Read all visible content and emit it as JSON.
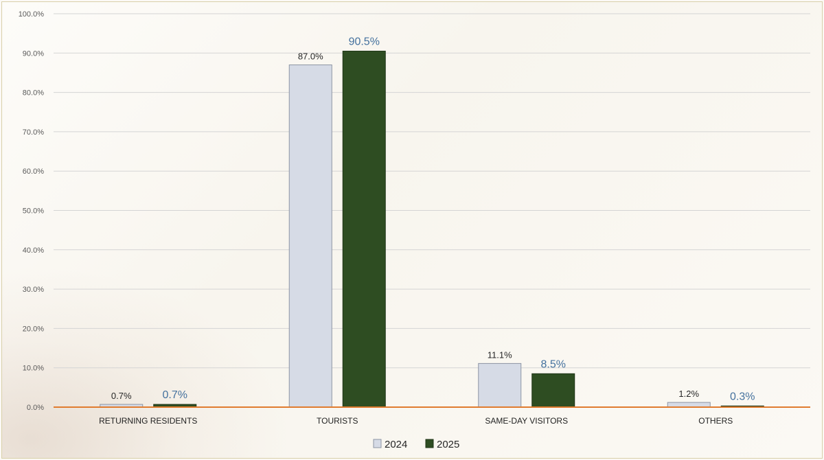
{
  "chart_data": {
    "type": "bar",
    "categories": [
      "RETURNING RESIDENTS",
      "TOURISTS",
      "SAME-DAY VISITORS",
      "OTHERS"
    ],
    "series": [
      {
        "name": "2024",
        "values": [
          0.7,
          87.0,
          11.1,
          1.2
        ],
        "labels": [
          "0.7%",
          "87.0%",
          "11.1%",
          "1.2%"
        ],
        "color": "#d6dbe6",
        "stroke": "#8c94a3"
      },
      {
        "name": "2025",
        "values": [
          0.7,
          90.5,
          8.5,
          0.3
        ],
        "labels": [
          "0.7%",
          "90.5%",
          "8.5%",
          "0.3%"
        ],
        "color": "#2e4d22",
        "stroke": "#1e3416"
      }
    ],
    "yticks": [
      "0.0%",
      "10.0%",
      "20.0%",
      "30.0%",
      "40.0%",
      "50.0%",
      "60.0%",
      "70.0%",
      "80.0%",
      "90.0%",
      "100.0%"
    ],
    "ylim": [
      0,
      100
    ],
    "grid": true,
    "legend": "bottom",
    "axis_color": "#e07b2e"
  }
}
